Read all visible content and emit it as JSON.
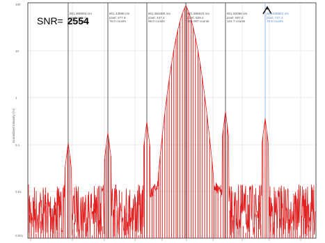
{
  "snr": {
    "label": "SNR=",
    "value": "2554"
  },
  "y_axis": {
    "label": "Normalized Intensity (%)",
    "ticks": [
      "100",
      "10",
      "1",
      "0.1",
      "0.01",
      "0.001"
    ]
  },
  "markers": [
    {
      "id": "m1",
      "lines": [
        "801.908893 nm",
        "pixel: 139.7",
        "77.0 counts"
      ],
      "highlight": false
    },
    {
      "id": "m2",
      "lines": [
        "801.43898 nm",
        "pixel: 277.9",
        "76.0 counts"
      ],
      "highlight": false
    },
    {
      "id": "m3",
      "lines": [
        "801.963485 nm",
        "pixel: 437.4",
        "96.0 counts"
      ],
      "highlight": false
    },
    {
      "id": "m4",
      "lines": [
        "801.895620 nm",
        "pixel: 509.2",
        "196 007 counts"
      ],
      "highlight": false
    },
    {
      "id": "m5",
      "lines": [
        "801.92096 nm",
        "pixel: 597.0",
        "104.7 counts"
      ],
      "highlight": false
    },
    {
      "id": "m6",
      "lines": [
        "801.939862 nm",
        "pixel: 737.4",
        "70.8 counts"
      ],
      "highlight": true
    }
  ],
  "colors": {
    "trace": "#e02020",
    "marker_line": "#333333",
    "highlight_marker_line": "#7aa8e6",
    "grid": "#d8d8d8"
  },
  "icons": {
    "cursor": "cursor-icon"
  }
}
